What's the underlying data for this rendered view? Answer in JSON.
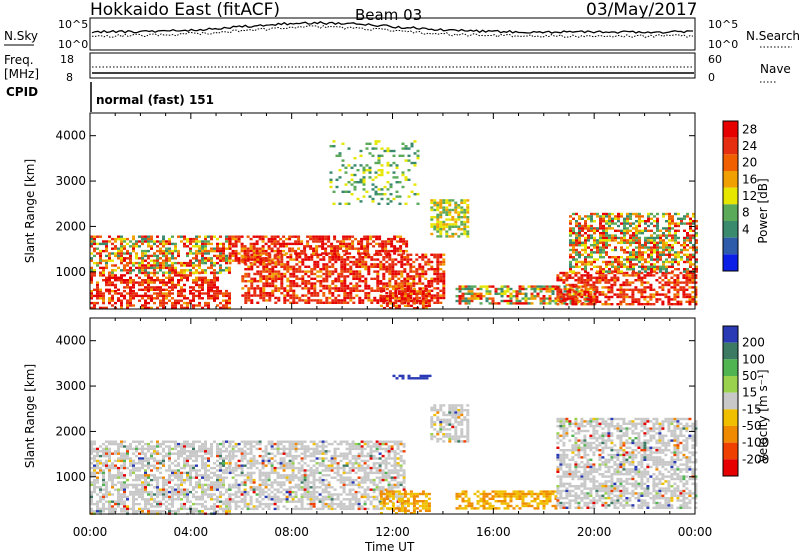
{
  "header": {
    "station": "Hokkaido East (fitACF)",
    "beam": "Beam 03",
    "date": "03/May/2017"
  },
  "noise_panel": {
    "left_label": "N.Sky",
    "right_label": "N.Search",
    "y_ticks_left": [
      "10^5",
      "10^0"
    ],
    "y_ticks_right": [
      "10^5",
      "10^0"
    ]
  },
  "freq_panel": {
    "label_line1": "Freq.",
    "label_line2": "[MHz]",
    "y_ticks_left": [
      "18",
      "8"
    ],
    "y_ticks_right": [
      "60",
      "0"
    ],
    "right_label": "Nave",
    "cpid_label": "CPID",
    "mode_text": "normal (fast) 151"
  },
  "colors": {
    "power": [
      "#0a1ee6",
      "#2e5cab",
      "#3a8a6e",
      "#5aaa5a",
      "#e6e600",
      "#f0a000",
      "#f06000",
      "#e62e10",
      "#e60000"
    ],
    "velocity": [
      "#e60000",
      "#f04000",
      "#f08a00",
      "#f0c000",
      "#c8c8c8",
      "#9ad24e",
      "#50b450",
      "#3c7a64",
      "#2a3ab4"
    ]
  },
  "chart_data": [
    {
      "type": "heatmap",
      "title": "Power",
      "ylabel": "Slant Range [km]",
      "xlabel": "",
      "x_ticks": [
        "00:00",
        "04:00",
        "08:00",
        "12:00",
        "16:00",
        "20:00",
        "00:00"
      ],
      "xlim_hours": [
        0,
        24
      ],
      "ylim": [
        180,
        4500
      ],
      "y_ticks": [
        1000,
        2000,
        3000,
        4000
      ],
      "colorbar_label": "Power [dB]",
      "colorbar_ticks": [
        4,
        8,
        12,
        16,
        20,
        24,
        28
      ],
      "regions": [
        {
          "t0": 0.0,
          "t1": 5.5,
          "r0": 180,
          "r1": 600,
          "band": "high"
        },
        {
          "t0": 0.0,
          "t1": 5.0,
          "r0": 600,
          "r1": 1000,
          "band": "high"
        },
        {
          "t0": 0.0,
          "t1": 5.5,
          "r0": 1000,
          "r1": 1800,
          "band": "mix"
        },
        {
          "t0": 5.5,
          "t1": 7.5,
          "r0": 1200,
          "r1": 1800,
          "band": "high"
        },
        {
          "t0": 6.0,
          "t1": 14.0,
          "r0": 300,
          "r1": 1400,
          "band": "high"
        },
        {
          "t0": 7.5,
          "t1": 12.5,
          "r0": 1400,
          "r1": 1800,
          "band": "high"
        },
        {
          "t0": 11.5,
          "t1": 13.5,
          "r0": 180,
          "r1": 700,
          "band": "high"
        },
        {
          "t0": 13.5,
          "t1": 15.0,
          "r0": 1800,
          "r1": 2600,
          "band": "mid"
        },
        {
          "t0": 14.5,
          "t1": 20.0,
          "r0": 300,
          "r1": 700,
          "band": "mix"
        },
        {
          "t0": 18.5,
          "t1": 24.0,
          "r0": 300,
          "r1": 1000,
          "band": "high"
        },
        {
          "t0": 19.0,
          "t1": 24.0,
          "r0": 1000,
          "r1": 2300,
          "band": "mix"
        },
        {
          "t0": 9.5,
          "t1": 13.0,
          "r0": 2500,
          "r1": 3900,
          "band": "low"
        }
      ]
    },
    {
      "type": "heatmap",
      "title": "Velocity",
      "ylabel": "Slant Range [km]",
      "xlabel": "Time UT",
      "x_ticks": [
        "00:00",
        "04:00",
        "08:00",
        "12:00",
        "16:00",
        "20:00",
        "00:00"
      ],
      "xlim_hours": [
        0,
        24
      ],
      "ylim": [
        180,
        4500
      ],
      "y_ticks": [
        1000,
        2000,
        3000,
        4000
      ],
      "colorbar_label": "Velocity [m s⁻¹]",
      "colorbar_ticks": [
        200,
        100,
        50,
        15,
        -15,
        -50,
        -100,
        -200
      ],
      "regions": [
        {
          "t0": 0.0,
          "t1": 5.5,
          "r0": 180,
          "r1": 1800,
          "band": "ground"
        },
        {
          "t0": 5.5,
          "t1": 12.5,
          "r0": 300,
          "r1": 1800,
          "band": "ground"
        },
        {
          "t0": 11.5,
          "t1": 13.5,
          "r0": 180,
          "r1": 700,
          "band": "neg"
        },
        {
          "t0": 13.5,
          "t1": 15.0,
          "r0": 1800,
          "r1": 2600,
          "band": "ground"
        },
        {
          "t0": 14.5,
          "t1": 18.5,
          "r0": 300,
          "r1": 700,
          "band": "neg"
        },
        {
          "t0": 18.5,
          "t1": 24.0,
          "r0": 300,
          "r1": 2300,
          "band": "ground"
        },
        {
          "t0": 12.0,
          "t1": 13.5,
          "r0": 3150,
          "r1": 3250,
          "band": "pos"
        }
      ]
    }
  ]
}
